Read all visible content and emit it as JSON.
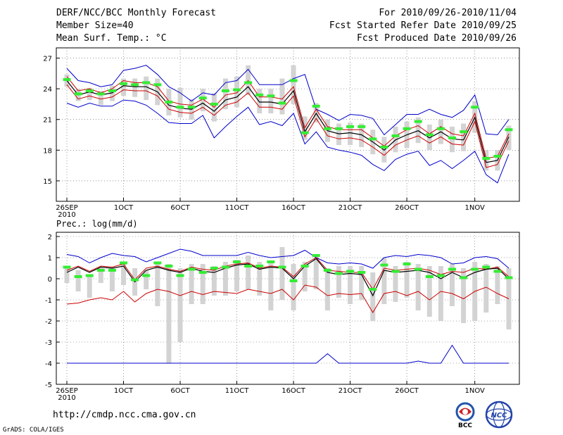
{
  "header": {
    "line1_left": "DERF/NCC/BCC Monthly Forecast",
    "line2_left": "Member Size=40",
    "line3_left": "Mean Surf. Temp.: °C",
    "line1_right": "For 2010/09/26-2010/11/04",
    "line2_right": "Fcst Started Refer Date 2010/09/25",
    "line3_right": "Fcst Produced Date 2010/09/26"
  },
  "footer": {
    "url": "http://cmdp.ncc.cma.gov.cn",
    "credit": "GrADS: COLA/IGES",
    "logo1_text": "BCC",
    "logo2_text": "NCC"
  },
  "colors": {
    "max_min": "#0000cc",
    "mean": "#000000",
    "spread": "#cc0000",
    "box": "#d3d3d3",
    "obs": "#33ee33"
  },
  "chart_data": [
    {
      "type": "line",
      "title": "Mean Surf. Temp.: °C",
      "x_tick_labels": [
        "26SEP",
        "1OCT",
        "6OCT",
        "11OCT",
        "16OCT",
        "21OCT",
        "26OCT",
        "1NOV"
      ],
      "x_tick_days": [
        0,
        5,
        10,
        15,
        20,
        25,
        30,
        36
      ],
      "x_sub_label": "2010",
      "y_ticks": [
        15,
        18,
        21,
        24,
        27
      ],
      "ylim": [
        13,
        28
      ],
      "days": 40,
      "series": [
        {
          "name": "max",
          "values": [
            26,
            24.8,
            24.6,
            24.2,
            24.4,
            25.8,
            26,
            26.3,
            25.4,
            24.2,
            23.6,
            22.8,
            23.6,
            23.4,
            24.6,
            24.8,
            25.9,
            24.4,
            24.4,
            24.4,
            25,
            25.4,
            22,
            21.5,
            20.9,
            21.5,
            21.4,
            21.1,
            19.5,
            20.5,
            21.5,
            21.5,
            22,
            21.5,
            21.2,
            21.9,
            23.4,
            19.6,
            19.5,
            21
          ]
        },
        {
          "name": "upper",
          "values": [
            25.2,
            23.8,
            24,
            23.6,
            24,
            24.8,
            24.6,
            24.6,
            24.2,
            22.8,
            22.5,
            22.4,
            23,
            22.2,
            23.4,
            23.6,
            24.8,
            23.2,
            23.2,
            23,
            24.2,
            20.2,
            22,
            20.3,
            20,
            20,
            20,
            19.2,
            18.4,
            19.4,
            20,
            20.4,
            19.6,
            20.3,
            19.6,
            19.4,
            21.6,
            17.2,
            17.4,
            19.6
          ]
        },
        {
          "name": "mean",
          "values": [
            24.8,
            23.4,
            23.7,
            23.4,
            23.6,
            24.3,
            24.2,
            24.2,
            23.7,
            22.4,
            22.1,
            22,
            22.6,
            21.8,
            22.9,
            23.2,
            24.2,
            22.7,
            22.7,
            22.5,
            23.8,
            19.8,
            21.6,
            19.9,
            19.6,
            19.7,
            19.5,
            18.8,
            18,
            19,
            19.5,
            19.9,
            19.2,
            19.8,
            19.1,
            19,
            21.2,
            16.8,
            17,
            19.3
          ]
        },
        {
          "name": "lower",
          "values": [
            24.4,
            23,
            23.3,
            23,
            23.2,
            23.9,
            23.8,
            23.8,
            23.3,
            22,
            21.7,
            21.6,
            22.2,
            21.4,
            22.4,
            22.7,
            23.6,
            22.2,
            22.2,
            22,
            23.3,
            19.3,
            21.1,
            19.4,
            19.1,
            19.2,
            19,
            18.3,
            17.5,
            18.5,
            19,
            19.4,
            18.7,
            19.3,
            18.6,
            18.5,
            20.8,
            16.3,
            16.6,
            18.9
          ]
        },
        {
          "name": "min",
          "values": [
            22.6,
            22.2,
            22.6,
            22.3,
            22.3,
            22.9,
            22.8,
            22.4,
            21.6,
            20.7,
            20.6,
            20.6,
            21.4,
            19.2,
            20.3,
            21.3,
            22.2,
            20.5,
            20.8,
            20.4,
            21.6,
            18.6,
            19.8,
            18.3,
            18,
            17.8,
            17.5,
            16.6,
            16,
            17.1,
            17.6,
            17.9,
            16.5,
            17,
            16.2,
            17,
            17.9,
            15.6,
            14.8,
            17.6
          ]
        },
        {
          "name": "obs",
          "values": [
            24.9,
            23.5,
            23.8,
            23.5,
            23.8,
            24.5,
            24.4,
            24.6,
            24.4,
            22.7,
            22.2,
            22.2,
            23.1,
            22.5,
            23.8,
            23.9,
            24.6,
            23.4,
            23.3,
            22.6,
            24.8,
            19.7,
            22.3,
            20.1,
            20.1,
            20.3,
            20.3,
            19.1,
            18.3,
            19.4,
            20.1,
            20.8,
            19.5,
            20.1,
            19.2,
            19.8,
            22.2,
            17.2,
            17.4,
            20
          ]
        },
        {
          "name": "box_high",
          "values": [
            25.4,
            24,
            24.1,
            23.8,
            24.3,
            25,
            25,
            25.2,
            25,
            24,
            24.1,
            23,
            24,
            23.6,
            25,
            25.2,
            26.3,
            24,
            24,
            25,
            26.3,
            21.3,
            22.6,
            21,
            20.6,
            20.7,
            20.6,
            20,
            19.3,
            20.3,
            20.8,
            21.2,
            20.5,
            21,
            20.3,
            20.6,
            22.8,
            18,
            18,
            20.4
          ]
        },
        {
          "name": "box_low",
          "values": [
            24.2,
            22.8,
            22.9,
            22.4,
            22.8,
            23.3,
            23.2,
            22.9,
            22.4,
            21.4,
            21.2,
            21,
            21.8,
            20.8,
            22,
            22.2,
            23.4,
            21.6,
            21.6,
            21.5,
            22.5,
            19,
            20.7,
            18.8,
            18.5,
            18.5,
            18.3,
            17.6,
            16.8,
            17.8,
            18.2,
            18.7,
            18,
            18.6,
            17.8,
            17.9,
            19.7,
            16,
            16,
            18
          ]
        }
      ]
    },
    {
      "type": "line",
      "title": "Prec.: log(mm/d)",
      "x_tick_labels": [
        "26SEP",
        "1OCT",
        "6OCT",
        "11OCT",
        "16OCT",
        "21OCT",
        "26OCT",
        "1NOV"
      ],
      "x_tick_days": [
        0,
        5,
        10,
        15,
        20,
        25,
        30,
        36
      ],
      "x_sub_label": "2010",
      "y_ticks": [
        -5,
        -4,
        -3,
        -2,
        -1,
        0,
        1,
        2
      ],
      "ylim": [
        -5,
        2.2
      ],
      "days": 40,
      "series": [
        {
          "name": "max",
          "values": [
            1.15,
            1.05,
            0.75,
            1,
            1.2,
            1.1,
            1.05,
            0.8,
            1,
            1.2,
            1.4,
            1.3,
            1.1,
            1.1,
            1.1,
            1.1,
            1.25,
            1.1,
            1,
            1.05,
            1.1,
            1.35,
            1,
            0.75,
            0.7,
            0.75,
            0.7,
            0.5,
            1,
            1.1,
            1.05,
            1.15,
            1.1,
            1,
            0.7,
            0.75,
            1,
            1.05,
            0.95,
            0.5
          ]
        },
        {
          "name": "upper",
          "values": [
            0.4,
            0.6,
            0.35,
            0.6,
            0.55,
            0.7,
            -0.05,
            0.5,
            0.6,
            0.45,
            0.35,
            0.55,
            0.45,
            0.4,
            0.6,
            0.7,
            0.75,
            0.5,
            0.6,
            0.55,
            0.1,
            0.7,
            1,
            0.4,
            0.35,
            0.3,
            0.3,
            -0.5,
            0.5,
            0.4,
            0.45,
            0.5,
            0.4,
            0.2,
            0.35,
            0.3,
            0.5,
            0.45,
            0.55,
            0.1
          ]
        },
        {
          "name": "mean",
          "values": [
            0.3,
            0.55,
            0.3,
            0.55,
            0.5,
            0.6,
            -0.15,
            0.4,
            0.55,
            0.4,
            0.3,
            0.5,
            0.35,
            0.3,
            0.5,
            0.65,
            0.7,
            0.45,
            0.55,
            0.5,
            0,
            0.6,
            0.95,
            0.3,
            0.2,
            0.25,
            0.2,
            -0.8,
            0.4,
            0.3,
            0.35,
            0.4,
            0.3,
            0,
            0.3,
            0.05,
            0.3,
            0.45,
            0.5,
            0
          ]
        },
        {
          "name": "spread_low",
          "values": [
            -1.2,
            -1.15,
            -1,
            -0.9,
            -1,
            -0.6,
            -1.1,
            -0.7,
            -0.5,
            -0.6,
            -0.8,
            -0.6,
            -0.75,
            -0.6,
            -0.65,
            -0.7,
            -0.5,
            -0.6,
            -0.7,
            -0.5,
            -1,
            -0.3,
            -0.4,
            -0.8,
            -0.7,
            -0.75,
            -0.7,
            -1.6,
            -0.7,
            -0.6,
            -0.8,
            -0.6,
            -1,
            -0.6,
            -0.7,
            -0.95,
            -0.6,
            -0.4,
            -0.7,
            -0.95
          ]
        },
        {
          "name": "min",
          "values": [
            -4,
            -4,
            -4,
            -4,
            -4,
            -4,
            -4,
            -4,
            -4,
            -4,
            -4,
            -4,
            -4,
            -4,
            -4,
            -4,
            -4,
            -4,
            -4,
            -4,
            -4,
            -4,
            -4,
            -3.55,
            -4,
            -4,
            -4,
            -4,
            -4,
            -4,
            -4,
            -3.9,
            -4,
            -4,
            -3.15,
            -4,
            -4,
            -4,
            -4,
            -4
          ]
        },
        {
          "name": "obs",
          "values": [
            0.55,
            0.1,
            0.15,
            0.4,
            0.4,
            0.75,
            -0.05,
            0.15,
            0.75,
            0.6,
            0.15,
            0.45,
            0.3,
            0.5,
            0.55,
            0.8,
            0.6,
            0.6,
            0.8,
            0.55,
            -0.1,
            0.6,
            1.1,
            0.4,
            0.25,
            0.35,
            0.3,
            -0.5,
            0.65,
            0.35,
            0.7,
            0.45,
            0.1,
            0.15,
            0.45,
            0.05,
            0.45,
            0.55,
            0.35,
            0.05
          ]
        },
        {
          "name": "box_high",
          "values": [
            0.6,
            0.4,
            0.2,
            0.5,
            0.5,
            0.8,
            0.5,
            0.4,
            0.8,
            0.7,
            0.5,
            0.7,
            0.7,
            0.6,
            0.8,
            0.9,
            1.1,
            0.8,
            0.8,
            1.5,
            0.7,
            0.8,
            1.1,
            0.5,
            0.6,
            0.6,
            0.6,
            0.3,
            1,
            0.6,
            0.8,
            0.7,
            0.6,
            0.6,
            0.7,
            0.5,
            0.8,
            0.7,
            0.6,
            0.5
          ]
        },
        {
          "name": "box_low",
          "values": [
            -0.2,
            -0.6,
            -0.9,
            -0.2,
            -0.6,
            -0.3,
            -0.8,
            -0.5,
            -1.3,
            -4,
            -3,
            -1.2,
            -1.2,
            -0.8,
            -0.8,
            -0.6,
            -0.5,
            -0.8,
            -1.5,
            -1,
            -1.5,
            -0.6,
            -0.5,
            -1.5,
            -0.9,
            -1.2,
            -1,
            -2,
            -1.2,
            -1.1,
            -0.9,
            -1.5,
            -1.8,
            -2,
            -1.3,
            -2.1,
            -2,
            -1.6,
            -1.2,
            -2.4
          ]
        }
      ]
    }
  ]
}
